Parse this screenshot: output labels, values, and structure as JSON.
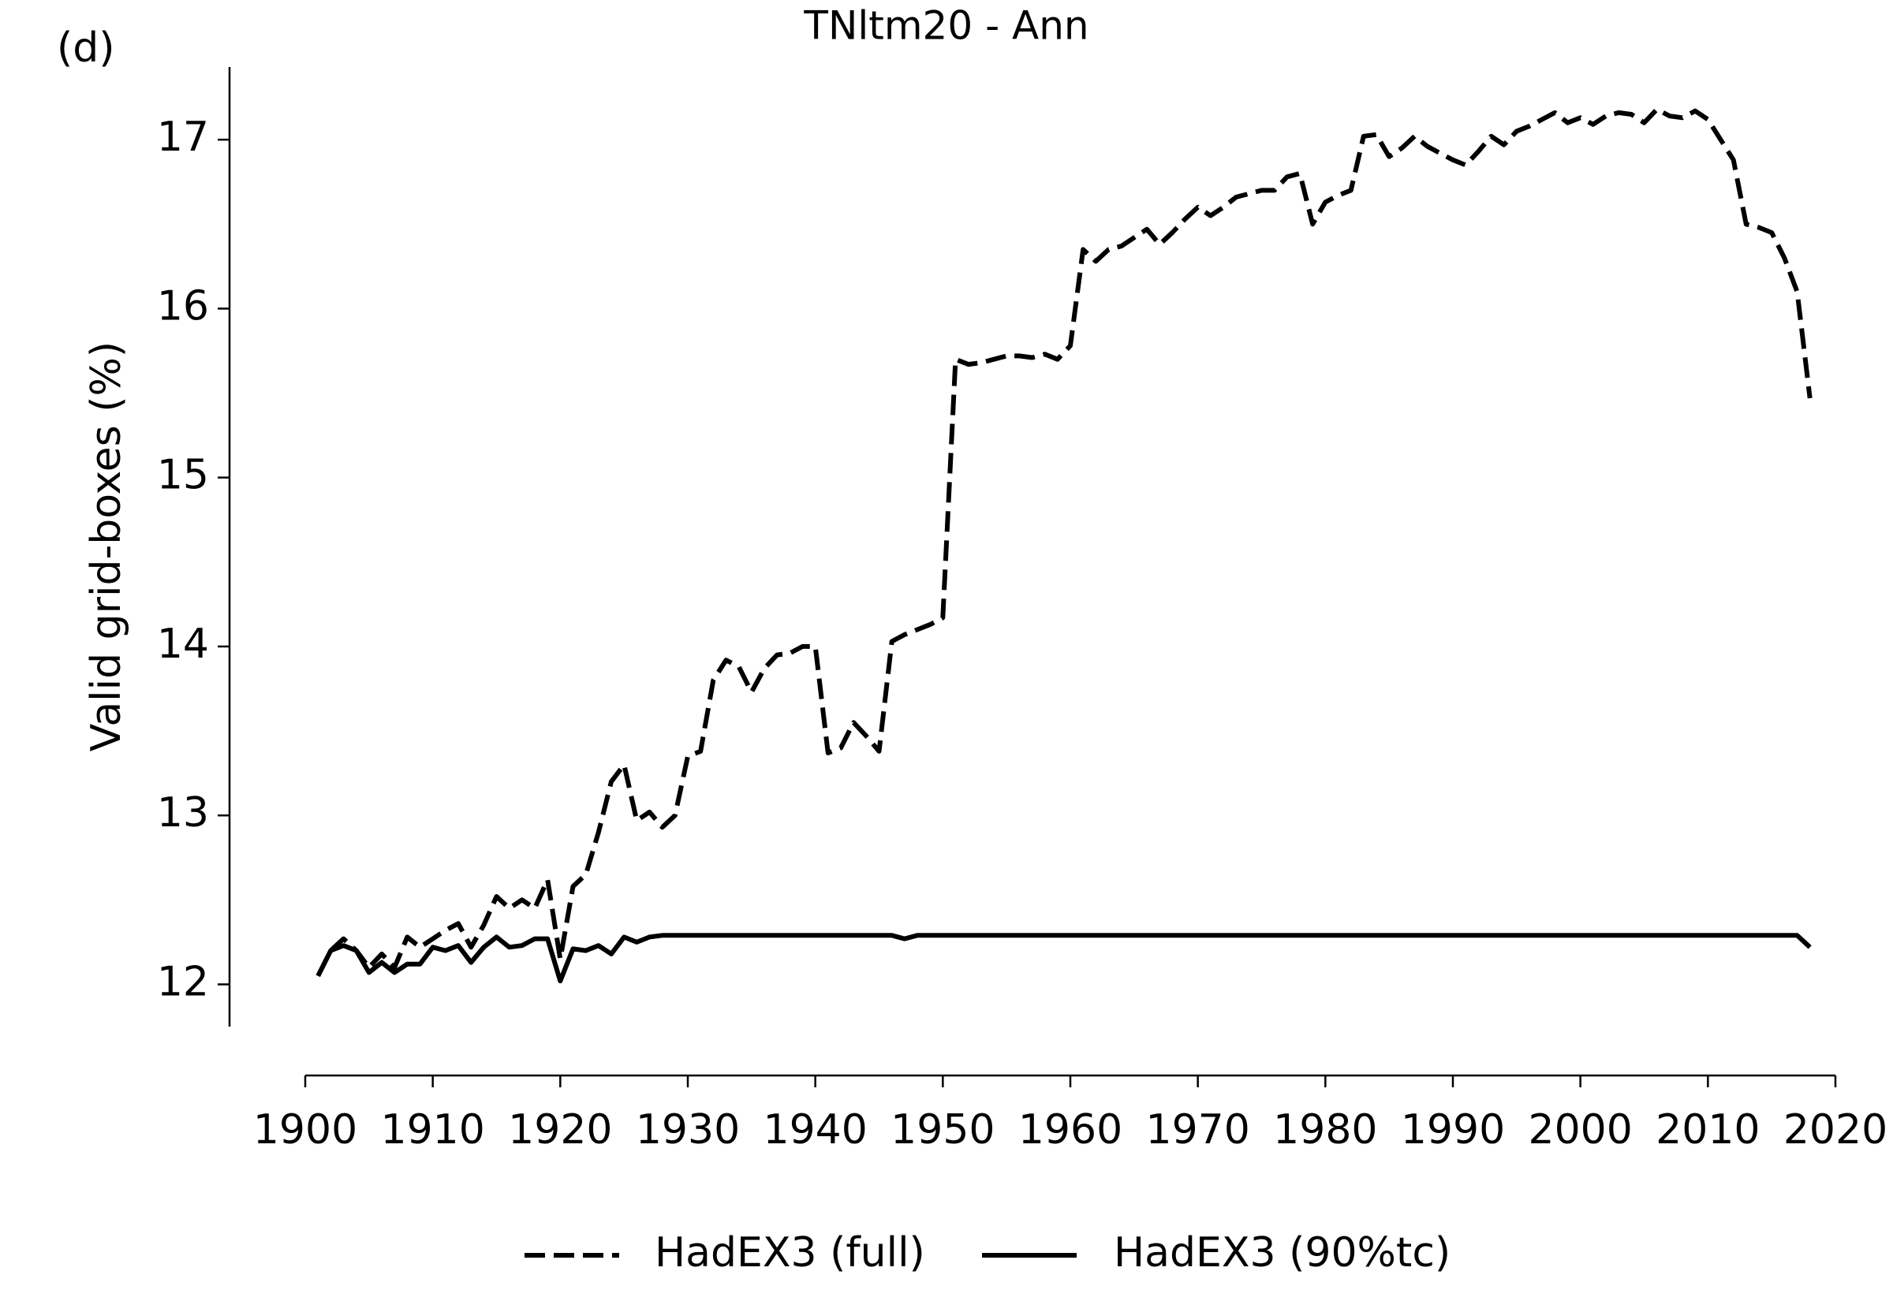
{
  "chart_data": {
    "type": "line",
    "title": "TNltm20 - Ann",
    "panel_label": "(d)",
    "y_label": "Valid grid-boxes (%)",
    "x": [
      1901,
      1902,
      1903,
      1904,
      1905,
      1906,
      1907,
      1908,
      1909,
      1910,
      1911,
      1912,
      1913,
      1914,
      1915,
      1916,
      1917,
      1918,
      1919,
      1920,
      1921,
      1922,
      1923,
      1924,
      1925,
      1926,
      1927,
      1928,
      1929,
      1930,
      1931,
      1932,
      1933,
      1934,
      1935,
      1936,
      1937,
      1938,
      1939,
      1940,
      1941,
      1942,
      1943,
      1944,
      1945,
      1946,
      1947,
      1948,
      1949,
      1950,
      1951,
      1952,
      1953,
      1954,
      1955,
      1956,
      1957,
      1958,
      1959,
      1960,
      1961,
      1962,
      1963,
      1964,
      1965,
      1966,
      1967,
      1968,
      1969,
      1970,
      1971,
      1972,
      1973,
      1974,
      1975,
      1976,
      1977,
      1978,
      1979,
      1980,
      1981,
      1982,
      1983,
      1984,
      1985,
      1986,
      1987,
      1988,
      1989,
      1990,
      1991,
      1992,
      1993,
      1994,
      1995,
      1996,
      1997,
      1998,
      1999,
      2000,
      2001,
      2002,
      2003,
      2004,
      2005,
      2006,
      2007,
      2008,
      2009,
      2010,
      2011,
      2012,
      2013,
      2014,
      2015,
      2016,
      2017,
      2018
    ],
    "series": [
      {
        "name": "HadEX3 (full)",
        "color": "#000000",
        "linestyle": "dashed",
        "values": [
          12.05,
          12.2,
          12.27,
          12.2,
          12.1,
          12.18,
          12.1,
          12.28,
          12.22,
          12.27,
          12.32,
          12.36,
          12.22,
          12.35,
          12.52,
          12.45,
          12.5,
          12.45,
          12.62,
          12.15,
          12.58,
          12.65,
          12.9,
          13.2,
          13.3,
          12.97,
          13.02,
          12.93,
          13.0,
          13.35,
          13.38,
          13.8,
          13.92,
          13.88,
          13.73,
          13.87,
          13.95,
          13.96,
          14.0,
          14.0,
          13.37,
          13.4,
          13.55,
          13.47,
          13.38,
          14.03,
          14.07,
          14.1,
          14.13,
          14.17,
          15.7,
          15.67,
          15.68,
          15.7,
          15.72,
          15.72,
          15.71,
          15.73,
          15.7,
          15.78,
          16.35,
          16.28,
          16.35,
          16.37,
          16.42,
          16.47,
          16.38,
          16.45,
          16.53,
          16.6,
          16.55,
          16.6,
          16.66,
          16.68,
          16.7,
          16.7,
          16.78,
          16.8,
          16.5,
          16.63,
          16.67,
          16.7,
          17.02,
          17.03,
          16.9,
          16.95,
          17.02,
          16.96,
          16.92,
          16.88,
          16.85,
          16.93,
          17.02,
          16.97,
          17.05,
          17.08,
          17.12,
          17.16,
          17.1,
          17.13,
          17.09,
          17.14,
          17.16,
          17.15,
          17.1,
          17.18,
          17.14,
          17.13,
          17.17,
          17.12,
          17.0,
          16.88,
          16.5,
          16.48,
          16.45,
          16.3,
          16.1,
          15.47
        ]
      },
      {
        "name": "HadEX3 (90%tc)",
        "color": "#000000",
        "linestyle": "solid",
        "values": [
          12.05,
          12.2,
          12.23,
          12.2,
          12.07,
          12.13,
          12.07,
          12.12,
          12.12,
          12.22,
          12.2,
          12.23,
          12.13,
          12.22,
          12.28,
          12.22,
          12.23,
          12.27,
          12.27,
          12.02,
          12.21,
          12.2,
          12.23,
          12.18,
          12.28,
          12.25,
          12.28,
          12.29,
          12.29,
          12.29,
          12.29,
          12.29,
          12.29,
          12.29,
          12.29,
          12.29,
          12.29,
          12.29,
          12.29,
          12.29,
          12.29,
          12.29,
          12.29,
          12.29,
          12.29,
          12.29,
          12.27,
          12.29,
          12.29,
          12.29,
          12.29,
          12.29,
          12.29,
          12.29,
          12.29,
          12.29,
          12.29,
          12.29,
          12.29,
          12.29,
          12.29,
          12.29,
          12.29,
          12.29,
          12.29,
          12.29,
          12.29,
          12.29,
          12.29,
          12.29,
          12.29,
          12.29,
          12.29,
          12.29,
          12.29,
          12.29,
          12.29,
          12.29,
          12.29,
          12.29,
          12.29,
          12.29,
          12.29,
          12.29,
          12.29,
          12.29,
          12.29,
          12.29,
          12.29,
          12.29,
          12.29,
          12.29,
          12.29,
          12.29,
          12.29,
          12.29,
          12.29,
          12.29,
          12.29,
          12.29,
          12.29,
          12.29,
          12.29,
          12.29,
          12.29,
          12.29,
          12.29,
          12.29,
          12.29,
          12.29,
          12.29,
          12.29,
          12.29,
          12.29,
          12.29,
          12.29,
          12.29,
          12.22
        ]
      }
    ],
    "xlim": [
      1900,
      2020
    ],
    "xticks": [
      1900,
      1910,
      1920,
      1930,
      1940,
      1950,
      1960,
      1970,
      1980,
      1990,
      2000,
      2010,
      2020
    ],
    "ylim": [
      11.75,
      17.43
    ],
    "yticks": [
      12,
      13,
      14,
      15,
      16,
      17
    ],
    "grid": false,
    "legend": "bottom"
  }
}
